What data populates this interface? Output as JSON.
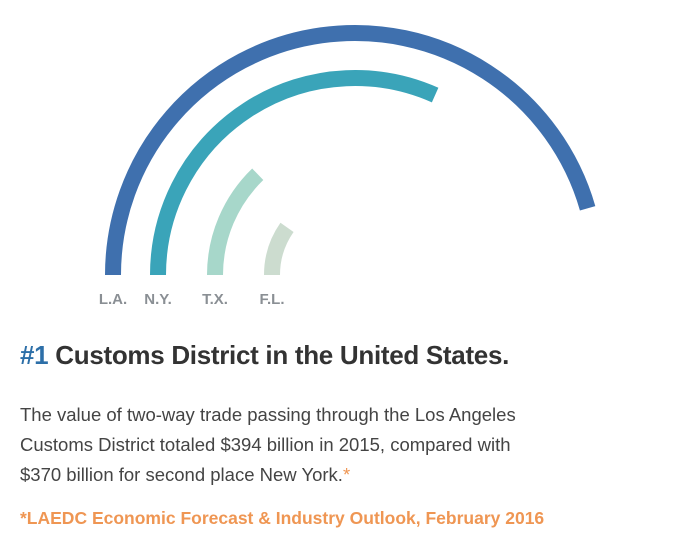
{
  "chart_data": {
    "type": "radial_bar",
    "categories": [
      "L.A.",
      "N.Y.",
      "T.X.",
      "F.L."
    ],
    "values": [
      164,
      114,
      46,
      35
    ],
    "colors": [
      "#3f70ae",
      "#3aa4b9",
      "#a7d7ca",
      "#ccdccf"
    ]
  },
  "headline": {
    "rank": "#1",
    "text": "Customs District in the United States."
  },
  "body": {
    "lines": [
      "The value of two-way trade passing through the Los Angeles",
      "Customs District totaled $394 billion in 2015, compared with",
      "$370 billion for second place New York."
    ],
    "note_mark": "*"
  },
  "footnote": "*LAEDC Economic Forecast & Industry Outlook, February 2016"
}
